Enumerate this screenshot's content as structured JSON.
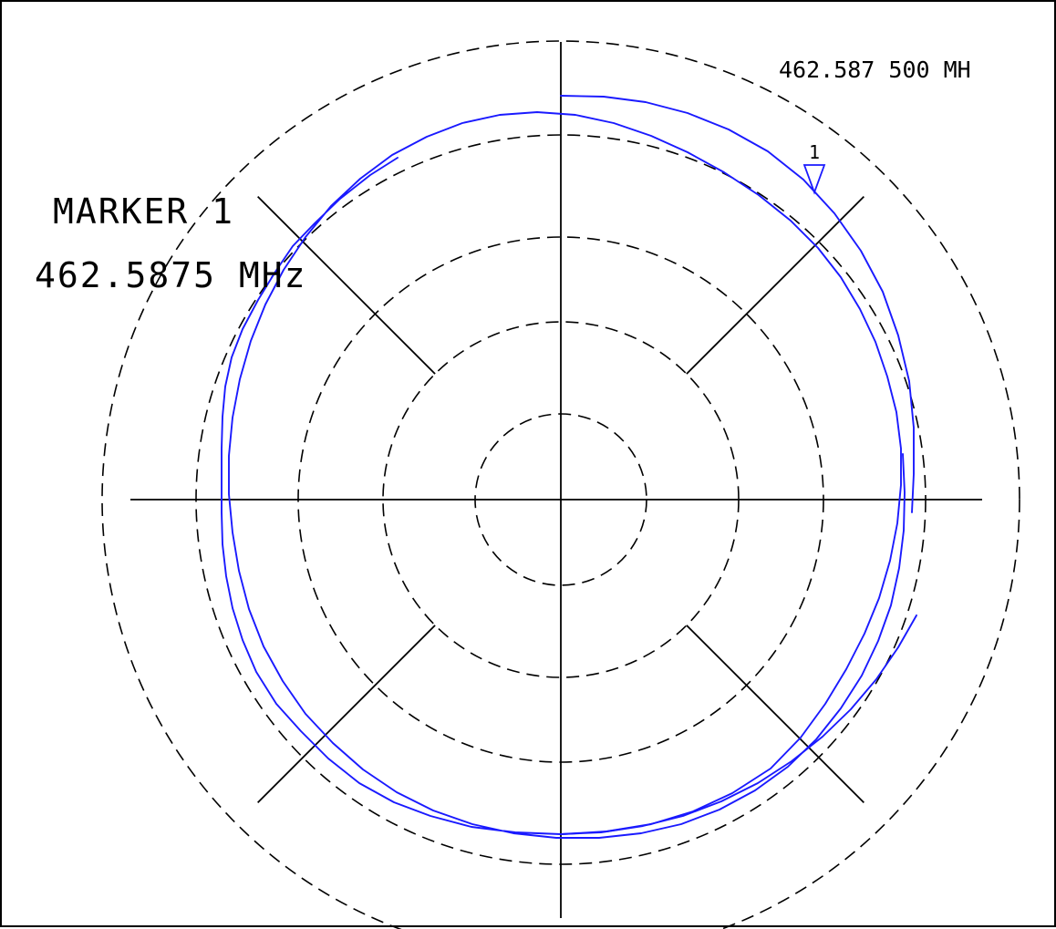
{
  "chart_data": {
    "type": "polar",
    "frequency_readout": "462.587 500 MH",
    "marker": {
      "label": "MARKER 1",
      "frequency": "462.5875 MHz",
      "number": "1"
    },
    "grid": {
      "concentric_circles": 5,
      "radial_lines_deg": [
        0,
        45,
        90,
        135,
        180,
        225,
        270,
        315
      ]
    },
    "trace_color": "#1a1aff",
    "trace_shape": "spiral"
  }
}
